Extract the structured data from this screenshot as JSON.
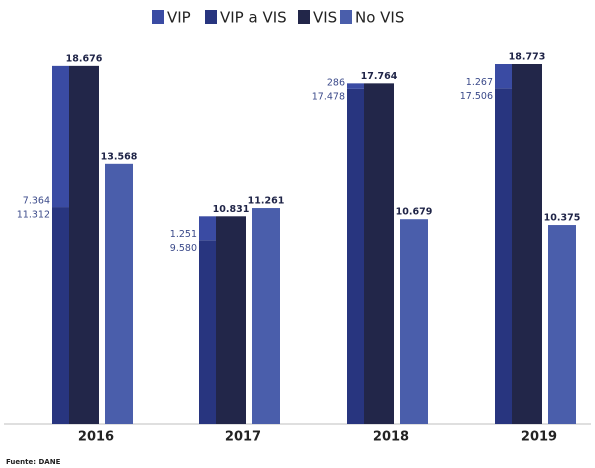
{
  "chart_data": {
    "type": "bar",
    "categories": [
      "2016",
      "2017",
      "2018",
      "2019"
    ],
    "legend": "top",
    "series": [
      {
        "name": "VIP",
        "color": "#3a4ba3",
        "stack": "a",
        "values": [
          7364,
          1251,
          286,
          1267
        ],
        "value_labels": [
          "7.364",
          "1.251",
          "286",
          "1.267"
        ]
      },
      {
        "name": "VIP a VIS",
        "color": "#28357f",
        "stack": "a",
        "values": [
          11312,
          9580,
          17478,
          17506
        ],
        "value_labels": [
          "11.312",
          "9.580",
          "17.478",
          "17.506"
        ]
      },
      {
        "name": "VIS",
        "color": "#222649",
        "values": [
          18676,
          10831,
          17764,
          18773
        ],
        "value_labels": [
          "18.676",
          "10.831",
          "17.764",
          "18.773"
        ]
      },
      {
        "name": "No VIS",
        "color": "#4a5eab",
        "values": [
          13568,
          11261,
          10679,
          10375
        ],
        "value_labels": [
          "13.568",
          "11.261",
          "10.679",
          "10.375"
        ]
      }
    ],
    "source": "Fuente: DANE"
  }
}
